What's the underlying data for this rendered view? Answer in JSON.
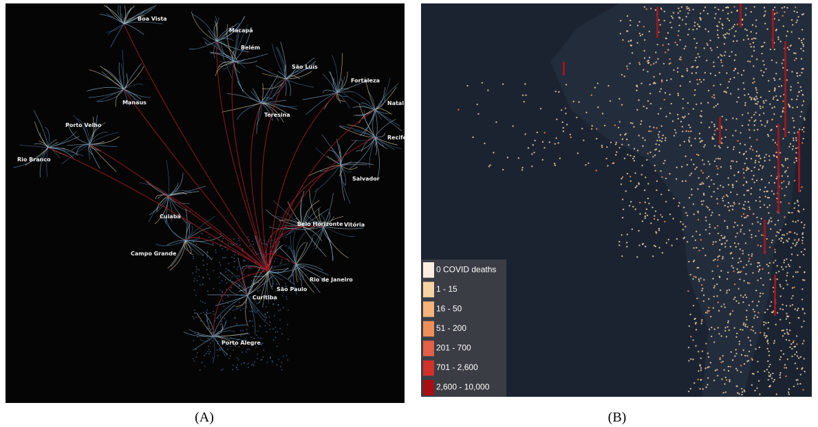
{
  "panels": [
    {
      "label": "(A)",
      "cities": [
        "Boa Vista",
        "Macapá",
        "Belém",
        "São Luís",
        "Fortaleza",
        "Natal",
        "Manaus",
        "Teresina",
        "Recife",
        "Porto Velho",
        "Rio Branco",
        "Salvador",
        "Cuiabá",
        "Belo Horizonte",
        "Vitória",
        "Campo Grande",
        "Rio de Janeiro",
        "São Paulo",
        "Curitiba",
        "Porto Alegre"
      ]
    },
    {
      "label": "(B)",
      "legend": [
        {
          "label": "0 COVID deaths",
          "color": "#fbeee0"
        },
        {
          "label": "1 - 15",
          "color": "#f6d3a3"
        },
        {
          "label": "16 - 50",
          "color": "#f4b47c"
        },
        {
          "label": "51 - 200",
          "color": "#ee8f5a"
        },
        {
          "label": "201 - 700",
          "color": "#e25f48"
        },
        {
          "label": "701 - 2,600",
          "color": "#d1312a"
        },
        {
          "label": "2,600 - 10,000",
          "color": "#a80f12"
        }
      ]
    }
  ]
}
